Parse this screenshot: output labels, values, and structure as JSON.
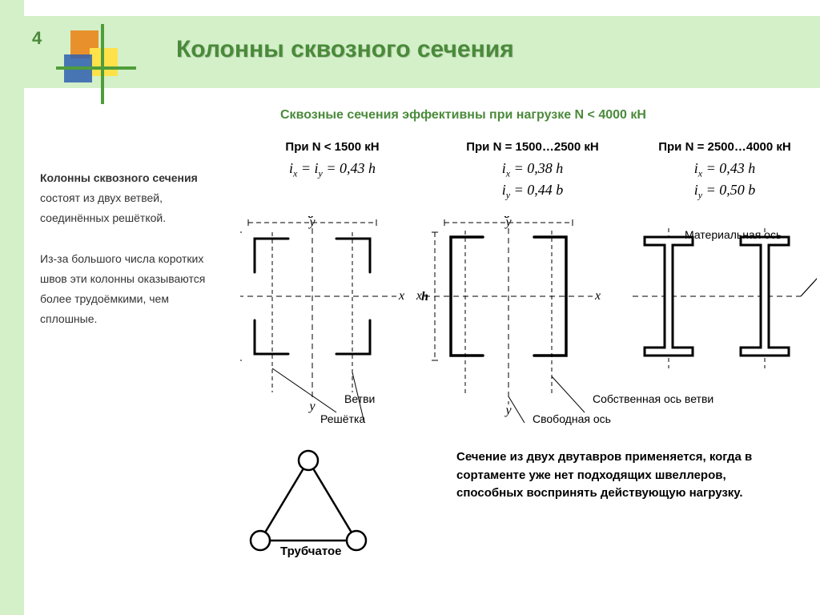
{
  "slide_number": "4",
  "title": "Колонны сквозного сечения",
  "subheader": "Сквозные сечения эффективны при нагрузке N < 4000 кН",
  "description_html": "<b>Колонны сквозного сечения</b> состоят из двух ветвей, соединённых решёткой.<br><br>Из-за большого числа коротких швов эти колонны оказываются более трудоёмкими, чем сплошные.",
  "columns": [
    {
      "head": "При N < 1500 кН",
      "formula": "<i>i<sub>x</sub></i> = <i>i<sub>y</sub></i> = 0,43 <i>h</i>"
    },
    {
      "head": "При N = 1500…2500 кН",
      "formula": "<i>i<sub>x</sub></i> = 0,38 <i>h</i><br><i>i<sub>y</sub></i> = 0,44 <i>b</i>"
    },
    {
      "head": "При N = 2500…4000 кН",
      "formula": "<i>i<sub>x</sub></i> = 0,43 <i>h</i><br><i>i<sub>y</sub></i> = 0,50 <i>b</i>"
    }
  ],
  "labels": {
    "material_axis": "Материальная ось",
    "vetvi": "Ветви",
    "reshetka": "Решётка",
    "sobstvennaya": "Собственная ось ветви",
    "svobodnaya": "Свободная ось",
    "trubchatoe": "Трубчатое"
  },
  "note": "Сечение из двух двутавров применяется, когда в сортаменте уже нет подходящих швеллеров, способных воспринять действующую нагрузку.",
  "diagram": {
    "axis_labels": {
      "x": "x",
      "y": "y",
      "width": "в",
      "height": "h"
    },
    "stroke": "#000000",
    "dash": "6,4",
    "section_width": 160,
    "section_height": 160
  },
  "logo_colors": {
    "a": "#e8912c",
    "b": "#4f9d3b",
    "c": "#ffe24a",
    "d": "#2e5fb0"
  }
}
